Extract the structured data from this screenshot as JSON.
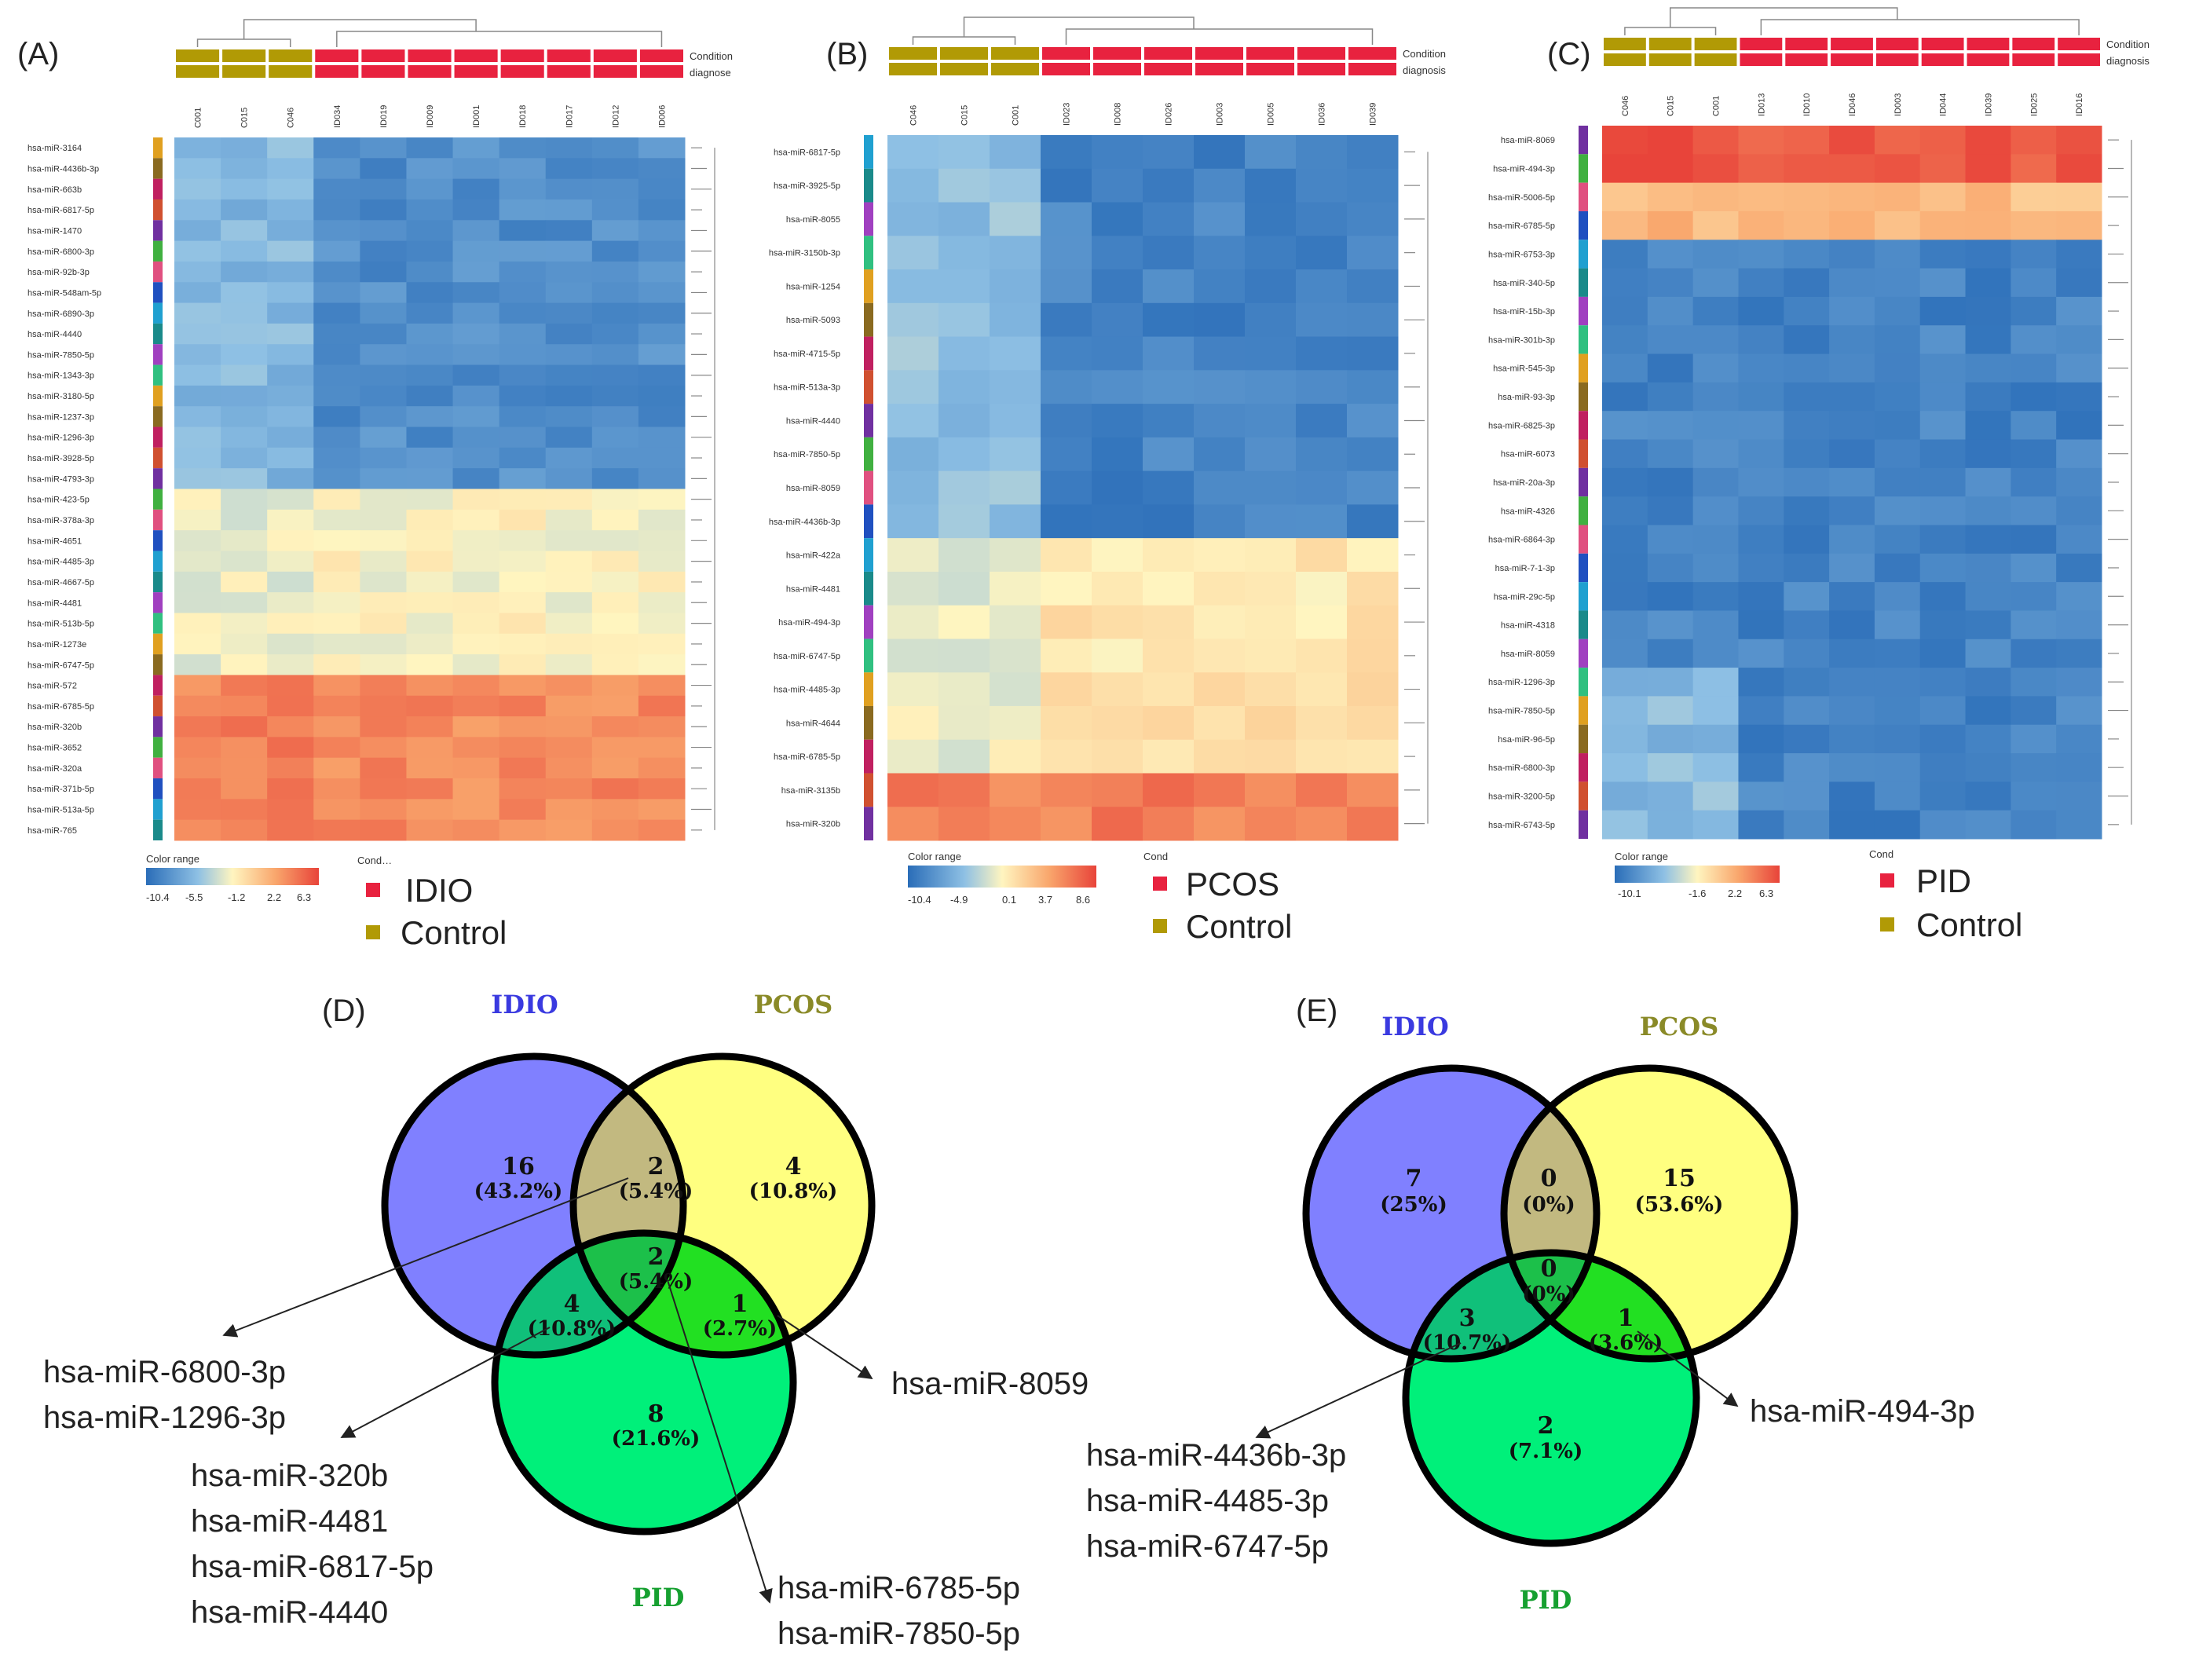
{
  "colors": {
    "case": "#e8223f",
    "control": "#b19a05",
    "idio_circle": "#8080ff",
    "pcos_circle": "#ffff80",
    "pid_circle": "#00f07a",
    "idio_pcos": "#c2b980",
    "idio_pid": "#10c07a",
    "pcos_pid": "#22e022",
    "all3": "#1cc04a",
    "idio_title": "#3a3ae0",
    "pcos_title": "#8a8a28",
    "pid_title": "#16a030"
  },
  "panels": {
    "A": {
      "label": "(A)",
      "condition_label": "Condition",
      "diagnose_label": "diagnose",
      "columns": [
        "C001",
        "C015",
        "C046",
        "ID034",
        "ID019",
        "ID009",
        "ID001",
        "ID018",
        "ID017",
        "ID012",
        "ID006"
      ],
      "rows": [
        "hsa-miR-3164",
        "hsa-miR-4436b-3p",
        "hsa-miR-663b",
        "hsa-miR-6817-5p",
        "hsa-miR-1470",
        "hsa-miR-6800-3p",
        "hsa-miR-92b-3p",
        "hsa-miR-548am-5p",
        "hsa-miR-6890-3p",
        "hsa-miR-4440",
        "hsa-miR-7850-5p",
        "hsa-miR-1343-3p",
        "hsa-miR-3180-5p",
        "hsa-miR-1237-3p",
        "hsa-miR-1296-3p",
        "hsa-miR-3928-5p",
        "hsa-miR-4793-3p",
        "hsa-miR-423-5p",
        "hsa-miR-378a-3p",
        "hsa-miR-4651",
        "hsa-miR-4485-3p",
        "hsa-miR-4667-5p",
        "hsa-miR-4481",
        "hsa-miR-513b-5p",
        "hsa-miR-1273e",
        "hsa-miR-6747-5p",
        "hsa-miR-572",
        "hsa-miR-6785-5p",
        "hsa-miR-320b",
        "hsa-miR-3652",
        "hsa-miR-320a",
        "hsa-miR-371b-5p",
        "hsa-miR-513a-5p",
        "hsa-miR-765"
      ],
      "color_range_title": "Color range",
      "color_ticks": [
        "-10.4",
        "-5.5",
        "-1.2",
        "2.2",
        "6.3"
      ],
      "cond_title": "Cond…",
      "legend_case": "IDIO",
      "legend_control": "Control"
    },
    "B": {
      "label": "(B)",
      "condition_label": "Condition",
      "diagnose_label": "diagnosis",
      "columns": [
        "C046",
        "C015",
        "C001",
        "ID023",
        "ID008",
        "ID026",
        "ID003",
        "ID005",
        "ID036",
        "ID039"
      ],
      "rows": [
        "hsa-miR-6817-5p",
        "hsa-miR-3925-5p",
        "hsa-miR-8055",
        "hsa-miR-3150b-3p",
        "hsa-miR-1254",
        "hsa-miR-5093",
        "hsa-miR-4715-5p",
        "hsa-miR-513a-3p",
        "hsa-miR-4440",
        "hsa-miR-7850-5p",
        "hsa-miR-8059",
        "hsa-miR-4436b-3p",
        "hsa-miR-422a",
        "hsa-miR-4481",
        "hsa-miR-494-3p",
        "hsa-miR-6747-5p",
        "hsa-miR-4485-3p",
        "hsa-miR-4644",
        "hsa-miR-6785-5p",
        "hsa-miR-3135b",
        "hsa-miR-320b"
      ],
      "color_range_title": "Color range",
      "color_ticks": [
        "-10.4",
        "-4.9",
        "0.1",
        "3.7",
        "8.6"
      ],
      "cond_title": "Cond",
      "legend_case": "PCOS",
      "legend_control": "Control"
    },
    "C": {
      "label": "(C)",
      "condition_label": "Condition",
      "diagnose_label": "diagnosis",
      "columns": [
        "C046",
        "C015",
        "C001",
        "ID013",
        "ID010",
        "ID046",
        "ID003",
        "ID044",
        "ID039",
        "ID025",
        "ID016"
      ],
      "rows": [
        "hsa-miR-8069",
        "hsa-miR-494-3p",
        "hsa-miR-5006-5p",
        "hsa-miR-6785-5p",
        "hsa-miR-6753-3p",
        "hsa-miR-340-5p",
        "hsa-miR-15b-3p",
        "hsa-miR-301b-3p",
        "hsa-miR-545-3p",
        "hsa-miR-93-3p",
        "hsa-miR-6825-3p",
        "hsa-miR-6073",
        "hsa-miR-20a-3p",
        "hsa-miR-4326",
        "hsa-miR-6864-3p",
        "hsa-miR-7-1-3p",
        "hsa-miR-29c-5p",
        "hsa-miR-4318",
        "hsa-miR-8059",
        "hsa-miR-1296-3p",
        "hsa-miR-7850-5p",
        "hsa-miR-96-5p",
        "hsa-miR-6800-3p",
        "hsa-miR-3200-5p",
        "hsa-miR-6743-5p"
      ],
      "color_range_title": "Color range",
      "color_ticks": [
        "-10.1",
        "-1.6",
        "2.2",
        "6.3"
      ],
      "cond_title": "Cond",
      "legend_case": "PID",
      "legend_control": "Control"
    },
    "D": {
      "label": "(D)",
      "titles": {
        "idio": "IDIO",
        "pcos": "PCOS",
        "pid": "PID"
      },
      "regions": {
        "idio_only": {
          "n": "16",
          "pct": "(43.2%)"
        },
        "pcos_only": {
          "n": "4",
          "pct": "(10.8%)"
        },
        "idio_pcos": {
          "n": "2",
          "pct": "(5.4%)"
        },
        "all3": {
          "n": "2",
          "pct": "(5.4%)"
        },
        "idio_pid": {
          "n": "4",
          "pct": "(10.8%)"
        },
        "pcos_pid": {
          "n": "1",
          "pct": "(2.7%)"
        },
        "pid_only": {
          "n": "8",
          "pct": "(21.6%)"
        }
      },
      "annotations": {
        "idio_pcos": [
          "hsa-miR-6800-3p",
          "hsa-miR-1296-3p"
        ],
        "idio_pid": [
          "hsa-miR-320b",
          "hsa-miR-4481",
          "hsa-miR-6817-5p",
          "hsa-miR-4440"
        ],
        "pcos_pid": [
          "hsa-miR-8059"
        ],
        "all3": [
          "hsa-miR-6785-5p",
          "hsa-miR-7850-5p"
        ]
      }
    },
    "E": {
      "label": "(E)",
      "titles": {
        "idio": "IDIO",
        "pcos": "PCOS",
        "pid": "PID"
      },
      "regions": {
        "idio_only": {
          "n": "7",
          "pct": "(25%)"
        },
        "pcos_only": {
          "n": "15",
          "pct": "(53.6%)"
        },
        "idio_pcos": {
          "n": "0",
          "pct": "(0%)"
        },
        "all3": {
          "n": "0",
          "pct": "(0%)"
        },
        "idio_pid": {
          "n": "3",
          "pct": "(10.7%)"
        },
        "pcos_pid": {
          "n": "1",
          "pct": "(3.6%)"
        },
        "pid_only": {
          "n": "2",
          "pct": "(7.1%)"
        }
      },
      "annotations": {
        "idio_pid": [
          "hsa-miR-4436b-3p",
          "hsa-miR-4485-3p",
          "hsa-miR-6747-5p"
        ],
        "pcos_pid": [
          "hsa-miR-494-3p"
        ]
      }
    }
  }
}
